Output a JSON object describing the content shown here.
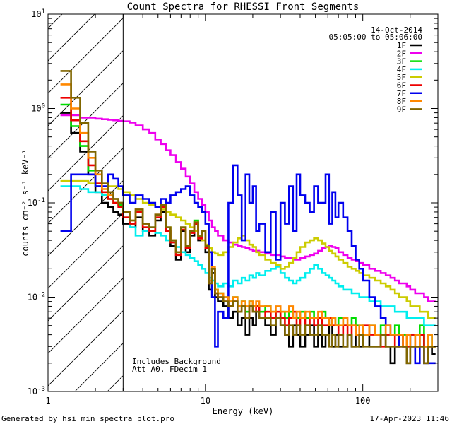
{
  "chart_data": {
    "type": "line",
    "title": "Count Spectra for RHESSI Front Segments",
    "xlabel": "Energy (keV)",
    "ylabel": "counts cm⁻² s⁻¹ keV⁻¹",
    "xscale": "log",
    "yscale": "log",
    "xlim": [
      1.0,
      300.0
    ],
    "ylim": [
      0.001,
      10.0
    ],
    "x_ticks": [
      {
        "value": 1,
        "label": "1"
      },
      {
        "value": 10,
        "label": "10"
      },
      {
        "value": 100,
        "label": "100"
      }
    ],
    "y_ticks": [
      {
        "value": 0.001,
        "base": "10",
        "exp": "-3"
      },
      {
        "value": 0.01,
        "base": "10",
        "exp": "-2"
      },
      {
        "value": 0.1,
        "base": "10",
        "exp": "-1"
      },
      {
        "value": 1,
        "base": "10",
        "exp": "0"
      },
      {
        "value": 10,
        "base": "10",
        "exp": "1"
      }
    ],
    "hatch_max_energy": 3.0,
    "date": "14-Oct-2014",
    "time_range": "05:05:00 to 05:06:00",
    "annotation_1": "Includes Background",
    "annotation_2": "Att A0, FDecim 1",
    "energy_edges": [
      1.2,
      1.4,
      1.6,
      1.8,
      2.0,
      2.2,
      2.4,
      2.6,
      2.8,
      3.0,
      3.3,
      3.6,
      4.0,
      4.4,
      4.8,
      5.2,
      5.6,
      6.0,
      6.5,
      7.0,
      7.5,
      8.0,
      8.5,
      9.0,
      9.5,
      10.0,
      10.5,
      11.0,
      11.5,
      12.0,
      13.0,
      14.0,
      15.0,
      16.0,
      17.0,
      18.0,
      19.0,
      20.0,
      21.0,
      22.0,
      24.0,
      26.0,
      28.0,
      30.0,
      32.0,
      34.0,
      36.0,
      38.0,
      40.0,
      43.0,
      46.0,
      49.0,
      52.0,
      55.0,
      58.0,
      61.0,
      64.0,
      67.0,
      70.0,
      75.0,
      80.0,
      85.0,
      90.0,
      95.0,
      100.0,
      110.0,
      120.0,
      130.0,
      140.0,
      150.0,
      160.0,
      170.0,
      180.0,
      190.0,
      200.0,
      215.0,
      230.0,
      245.0,
      260.0,
      275.0,
      290.0
    ],
    "series": [
      {
        "name": "1F",
        "color": "#000000",
        "values": [
          0.9,
          0.55,
          0.35,
          0.2,
          0.13,
          0.1,
          0.09,
          0.08,
          0.075,
          0.06,
          0.055,
          0.07,
          0.05,
          0.045,
          0.065,
          0.08,
          0.05,
          0.035,
          0.025,
          0.05,
          0.03,
          0.045,
          0.06,
          0.04,
          0.05,
          0.03,
          0.012,
          0.018,
          0.01,
          0.009,
          0.008,
          0.006,
          0.007,
          0.005,
          0.006,
          0.004,
          0.006,
          0.005,
          0.007,
          0.006,
          0.005,
          0.004,
          0.006,
          0.005,
          0.004,
          0.003,
          0.005,
          0.004,
          0.003,
          0.004,
          0.005,
          0.003,
          0.004,
          0.003,
          0.004,
          0.005,
          0.003,
          0.004,
          0.003,
          0.003,
          0.004,
          0.003,
          0.004,
          0.003,
          0.004,
          0.003,
          0.003,
          0.004,
          0.003,
          0.002,
          0.003,
          0.004,
          0.003,
          0.002,
          0.003,
          0.003,
          0.004,
          0.002,
          0.003,
          0.0025
        ]
      },
      {
        "name": "2F",
        "color": "#ee00ee",
        "values": [
          0.85,
          0.85,
          0.8,
          0.8,
          0.78,
          0.77,
          0.76,
          0.75,
          0.74,
          0.73,
          0.71,
          0.66,
          0.6,
          0.55,
          0.47,
          0.42,
          0.36,
          0.32,
          0.27,
          0.23,
          0.19,
          0.16,
          0.13,
          0.11,
          0.095,
          0.08,
          0.065,
          0.055,
          0.05,
          0.045,
          0.04,
          0.038,
          0.036,
          0.035,
          0.034,
          0.033,
          0.032,
          0.031,
          0.031,
          0.03,
          0.029,
          0.028,
          0.028,
          0.027,
          0.026,
          0.026,
          0.025,
          0.025,
          0.026,
          0.027,
          0.028,
          0.029,
          0.031,
          0.033,
          0.034,
          0.035,
          0.034,
          0.033,
          0.03,
          0.028,
          0.026,
          0.025,
          0.024,
          0.023,
          0.022,
          0.02,
          0.019,
          0.018,
          0.017,
          0.016,
          0.015,
          0.014,
          0.014,
          0.013,
          0.012,
          0.011,
          0.011,
          0.01,
          0.009,
          0.009
        ]
      },
      {
        "name": "3F",
        "color": "#00dd00",
        "values": [
          1.1,
          0.65,
          0.4,
          0.22,
          0.15,
          0.12,
          0.11,
          0.1,
          0.095,
          0.07,
          0.06,
          0.08,
          0.055,
          0.05,
          0.07,
          0.09,
          0.055,
          0.04,
          0.03,
          0.055,
          0.035,
          0.05,
          0.065,
          0.045,
          0.05,
          0.035,
          0.015,
          0.02,
          0.012,
          0.011,
          0.01,
          0.009,
          0.01,
          0.008,
          0.009,
          0.007,
          0.009,
          0.008,
          0.008,
          0.007,
          0.008,
          0.007,
          0.006,
          0.007,
          0.006,
          0.007,
          0.006,
          0.006,
          0.007,
          0.006,
          0.007,
          0.006,
          0.006,
          0.007,
          0.006,
          0.005,
          0.006,
          0.005,
          0.006,
          0.005,
          0.005,
          0.006,
          0.005,
          0.005,
          0.004,
          0.005,
          0.004,
          0.005,
          0.004,
          0.004,
          0.005,
          0.004,
          0.004,
          0.003,
          0.004,
          0.004,
          0.005,
          0.003,
          0.004,
          0.003
        ]
      },
      {
        "name": "4F",
        "color": "#00eeee",
        "values": [
          0.15,
          0.15,
          0.14,
          0.13,
          0.13,
          0.12,
          0.12,
          0.11,
          0.1,
          0.08,
          0.055,
          0.045,
          0.05,
          0.055,
          0.048,
          0.045,
          0.04,
          0.038,
          0.034,
          0.03,
          0.028,
          0.026,
          0.024,
          0.022,
          0.02,
          0.018,
          0.016,
          0.015,
          0.014,
          0.013,
          0.014,
          0.013,
          0.015,
          0.014,
          0.016,
          0.015,
          0.017,
          0.016,
          0.018,
          0.017,
          0.019,
          0.02,
          0.021,
          0.018,
          0.016,
          0.015,
          0.014,
          0.015,
          0.016,
          0.018,
          0.02,
          0.022,
          0.02,
          0.018,
          0.017,
          0.016,
          0.015,
          0.014,
          0.013,
          0.012,
          0.012,
          0.011,
          0.011,
          0.01,
          0.01,
          0.009,
          0.009,
          0.008,
          0.008,
          0.008,
          0.007,
          0.007,
          0.007,
          0.006,
          0.006,
          0.006,
          0.006,
          0.005,
          0.005,
          0.005
        ]
      },
      {
        "name": "5F",
        "color": "#cccc00",
        "values": [
          0.17,
          0.17,
          0.17,
          0.16,
          0.16,
          0.16,
          0.15,
          0.15,
          0.14,
          0.13,
          0.12,
          0.11,
          0.1,
          0.095,
          0.09,
          0.085,
          0.08,
          0.075,
          0.07,
          0.065,
          0.06,
          0.055,
          0.05,
          0.045,
          0.04,
          0.036,
          0.033,
          0.03,
          0.029,
          0.028,
          0.03,
          0.034,
          0.038,
          0.042,
          0.045,
          0.04,
          0.036,
          0.034,
          0.03,
          0.028,
          0.025,
          0.023,
          0.022,
          0.02,
          0.021,
          0.023,
          0.026,
          0.03,
          0.034,
          0.038,
          0.04,
          0.042,
          0.04,
          0.037,
          0.034,
          0.031,
          0.029,
          0.027,
          0.025,
          0.023,
          0.021,
          0.02,
          0.019,
          0.018,
          0.017,
          0.016,
          0.015,
          0.014,
          0.013,
          0.012,
          0.011,
          0.01,
          0.01,
          0.009,
          0.008,
          0.008,
          0.007,
          0.007,
          0.006,
          0.006
        ]
      },
      {
        "name": "6F",
        "color": "#ee0000",
        "values": [
          1.3,
          0.75,
          0.45,
          0.25,
          0.16,
          0.13,
          0.11,
          0.1,
          0.09,
          0.07,
          0.06,
          0.08,
          0.055,
          0.05,
          0.07,
          0.09,
          0.05,
          0.038,
          0.028,
          0.052,
          0.033,
          0.048,
          0.06,
          0.042,
          0.05,
          0.033,
          0.014,
          0.02,
          0.011,
          0.01,
          0.009,
          0.008,
          0.009,
          0.007,
          0.008,
          0.006,
          0.008,
          0.007,
          0.008,
          0.006,
          0.007,
          0.006,
          0.007,
          0.006,
          0.005,
          0.006,
          0.007,
          0.005,
          0.006,
          0.005,
          0.006,
          0.005,
          0.006,
          0.005,
          0.005,
          0.006,
          0.005,
          0.005,
          0.004,
          0.005,
          0.004,
          0.005,
          0.004,
          0.004,
          0.005,
          0.004,
          0.004,
          0.003,
          0.004,
          0.004,
          0.003,
          0.004,
          0.003,
          0.003,
          0.004,
          0.003,
          0.004,
          0.003,
          0.003,
          0.003
        ]
      },
      {
        "name": "7F",
        "color": "#0000ee",
        "values": [
          0.05,
          0.2,
          0.2,
          0.2,
          0.15,
          0.15,
          0.2,
          0.18,
          0.15,
          0.12,
          0.1,
          0.12,
          0.11,
          0.1,
          0.09,
          0.11,
          0.1,
          0.12,
          0.13,
          0.14,
          0.15,
          0.12,
          0.1,
          0.09,
          0.08,
          0.06,
          0.03,
          0.01,
          0.003,
          0.007,
          0.006,
          0.1,
          0.25,
          0.12,
          0.04,
          0.2,
          0.1,
          0.15,
          0.05,
          0.06,
          0.03,
          0.08,
          0.025,
          0.1,
          0.06,
          0.15,
          0.05,
          0.2,
          0.12,
          0.1,
          0.08,
          0.15,
          0.1,
          0.1,
          0.2,
          0.06,
          0.13,
          0.07,
          0.1,
          0.07,
          0.05,
          0.035,
          0.025,
          0.02,
          0.015,
          0.01,
          0.008,
          0.006,
          0.005,
          0.004,
          0.004,
          0.003,
          0.003,
          0.004,
          0.003,
          0.002,
          0.003,
          0.002,
          0.002,
          0.002
        ]
      },
      {
        "name": "8F",
        "color": "#ff8800",
        "values": [
          1.8,
          1.0,
          0.55,
          0.3,
          0.2,
          0.14,
          0.12,
          0.11,
          0.1,
          0.08,
          0.065,
          0.085,
          0.06,
          0.055,
          0.075,
          0.095,
          0.055,
          0.04,
          0.03,
          0.055,
          0.035,
          0.05,
          0.062,
          0.044,
          0.05,
          0.035,
          0.015,
          0.021,
          0.012,
          0.011,
          0.01,
          0.009,
          0.01,
          0.008,
          0.009,
          0.008,
          0.009,
          0.008,
          0.009,
          0.008,
          0.008,
          0.007,
          0.008,
          0.007,
          0.007,
          0.008,
          0.006,
          0.007,
          0.006,
          0.007,
          0.006,
          0.006,
          0.007,
          0.006,
          0.006,
          0.005,
          0.006,
          0.005,
          0.005,
          0.006,
          0.005,
          0.005,
          0.004,
          0.005,
          0.004,
          0.005,
          0.004,
          0.004,
          0.005,
          0.004,
          0.004,
          0.004,
          0.003,
          0.004,
          0.003,
          0.004,
          0.003,
          0.003,
          0.004,
          0.003
        ]
      },
      {
        "name": "9F",
        "color": "#806600",
        "values": [
          2.5,
          1.3,
          0.7,
          0.35,
          0.22,
          0.16,
          0.13,
          0.11,
          0.1,
          0.08,
          0.065,
          0.085,
          0.06,
          0.055,
          0.075,
          0.095,
          0.055,
          0.04,
          0.03,
          0.055,
          0.035,
          0.05,
          0.062,
          0.044,
          0.05,
          0.035,
          0.014,
          0.02,
          0.011,
          0.01,
          0.009,
          0.008,
          0.009,
          0.007,
          0.008,
          0.006,
          0.008,
          0.007,
          0.007,
          0.006,
          0.006,
          0.005,
          0.006,
          0.005,
          0.004,
          0.005,
          0.004,
          0.005,
          0.004,
          0.005,
          0.004,
          0.004,
          0.005,
          0.004,
          0.004,
          0.003,
          0.004,
          0.003,
          0.004,
          0.003,
          0.004,
          0.003,
          0.003,
          0.004,
          0.003,
          0.003,
          0.003,
          0.004,
          0.003,
          0.003,
          0.003,
          0.003,
          0.003,
          0.002,
          0.003,
          0.003,
          0.003,
          0.002,
          0.003,
          0.003
        ]
      }
    ]
  },
  "footer": {
    "generated_by": "Generated by hsi_min_spectra_plot.pro",
    "timestamp": "17-Apr-2023 11:46"
  }
}
